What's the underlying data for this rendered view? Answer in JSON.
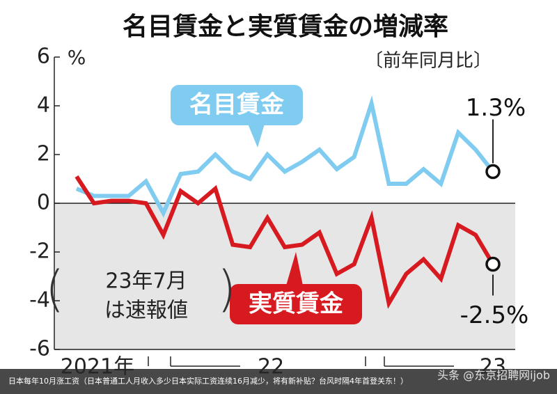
{
  "chart_data": {
    "type": "line",
    "title": "名目賃金と実質賃金の増減率",
    "subtitle": "〔前年同月比〕",
    "y_unit": "%",
    "note_lines": [
      "23年7月",
      "は速報値"
    ],
    "categories": [
      null,
      "2021年",
      null,
      null,
      null,
      null,
      null,
      null,
      null,
      null,
      null,
      "22",
      null,
      null,
      null,
      null,
      null,
      null,
      null,
      null,
      null,
      null,
      null,
      null,
      "23"
    ],
    "series": [
      {
        "name": "名目賃金",
        "color": "#80ccf0",
        "end_label": "1.3%",
        "values": [
          0.6,
          0.3,
          0.3,
          0.3,
          0.9,
          -0.4,
          1.2,
          1.3,
          2.0,
          1.3,
          1.0,
          2.0,
          1.3,
          1.7,
          2.2,
          1.4,
          1.9,
          4.1,
          0.8,
          0.8,
          1.4,
          0.8,
          2.9,
          2.2,
          1.3
        ]
      },
      {
        "name": "実質賃金",
        "color": "#d71920",
        "end_label": "-2.5%",
        "values": [
          1.1,
          0.0,
          0.1,
          0.1,
          0.0,
          -1.3,
          0.5,
          0.0,
          0.6,
          -1.7,
          -1.8,
          -0.6,
          -1.8,
          -1.7,
          -1.2,
          -2.9,
          -2.5,
          -0.6,
          -4.1,
          -2.9,
          -2.3,
          -3.1,
          -0.9,
          -1.3,
          -2.5
        ]
      }
    ],
    "ylim": [
      -6,
      6
    ],
    "yticks": [
      -6,
      -4,
      -2,
      0,
      2,
      4,
      6
    ],
    "negative_shade": "#e6e6e6"
  },
  "caption": "日本每年10月涨工资（日本普通工人月收入多少日本实际工资连续16月减少，将有新补贴？台风时隔4年首登关东！）",
  "watermark": "头条 @东京招聘网ijob"
}
